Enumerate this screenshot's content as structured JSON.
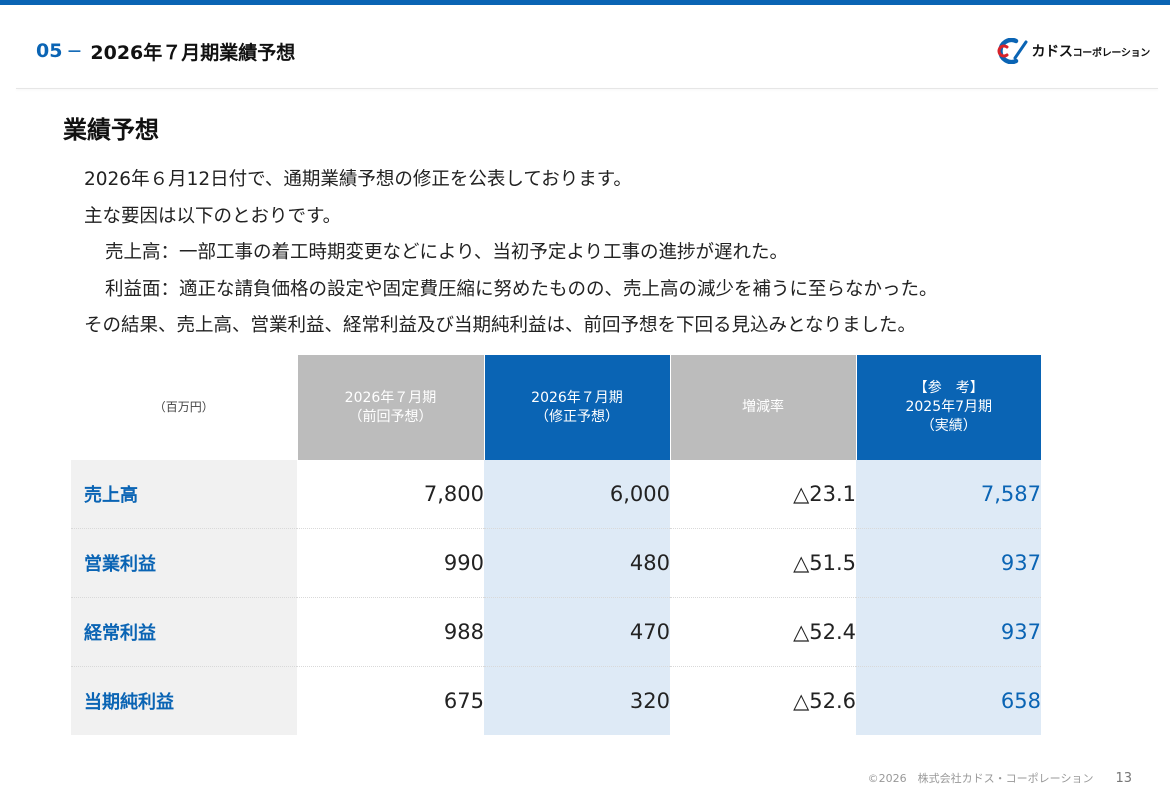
{
  "header": {
    "section_number": "05",
    "dash": "−",
    "title": "2026年７月期業績予想"
  },
  "logo": {
    "text_main": "カドス",
    "text_sub": "コーポレーション",
    "colors": {
      "blue": "#0a64b4",
      "red": "#d8232a"
    }
  },
  "section_title": "業績予想",
  "paragraphs": [
    "2026年６月12日付で、通期業績予想の修正を公表しております。",
    "主な要因は以下のとおりです。",
    "売上高：一部工事の着工時期変更などにより、当初予定より工事の進捗が遅れた。",
    "利益面：適正な請負価格の設定や固定費圧縮に努めたものの、売上高の減少を補うに至らなかった。",
    "その結果、売上高、営業利益、経常利益及び当期純利益は、前回予想を下回る見込みとなりました。"
  ],
  "table": {
    "unit": "（百万円）",
    "headers": {
      "prev": [
        "2026年７月期",
        "（前回予想）"
      ],
      "revised": [
        "2026年７月期",
        "（修正予想）"
      ],
      "rate": [
        "増減率"
      ],
      "ref": [
        "【参　考】",
        "2025年7月期",
        "（実績）"
      ]
    },
    "rows": [
      {
        "label": "売上高",
        "prev": "7,800",
        "revised": "6,000",
        "rate": "△23.1",
        "ref": "7,587"
      },
      {
        "label": "営業利益",
        "prev": "990",
        "revised": "480",
        "rate": "△51.5",
        "ref": "937"
      },
      {
        "label": "経常利益",
        "prev": "988",
        "revised": "470",
        "rate": "△52.4",
        "ref": "937"
      },
      {
        "label": "当期純利益",
        "prev": "675",
        "revised": "320",
        "rate": "△52.6",
        "ref": "658"
      }
    ]
  },
  "footer": {
    "copyright": "©2026　株式会社カドス・コーポレーション",
    "page": "13"
  },
  "colors": {
    "accent": "#0a64b4",
    "header_gray": "#bcbcbc",
    "cell_blue": "#deeaf6",
    "label_gray": "#f1f1f1"
  }
}
